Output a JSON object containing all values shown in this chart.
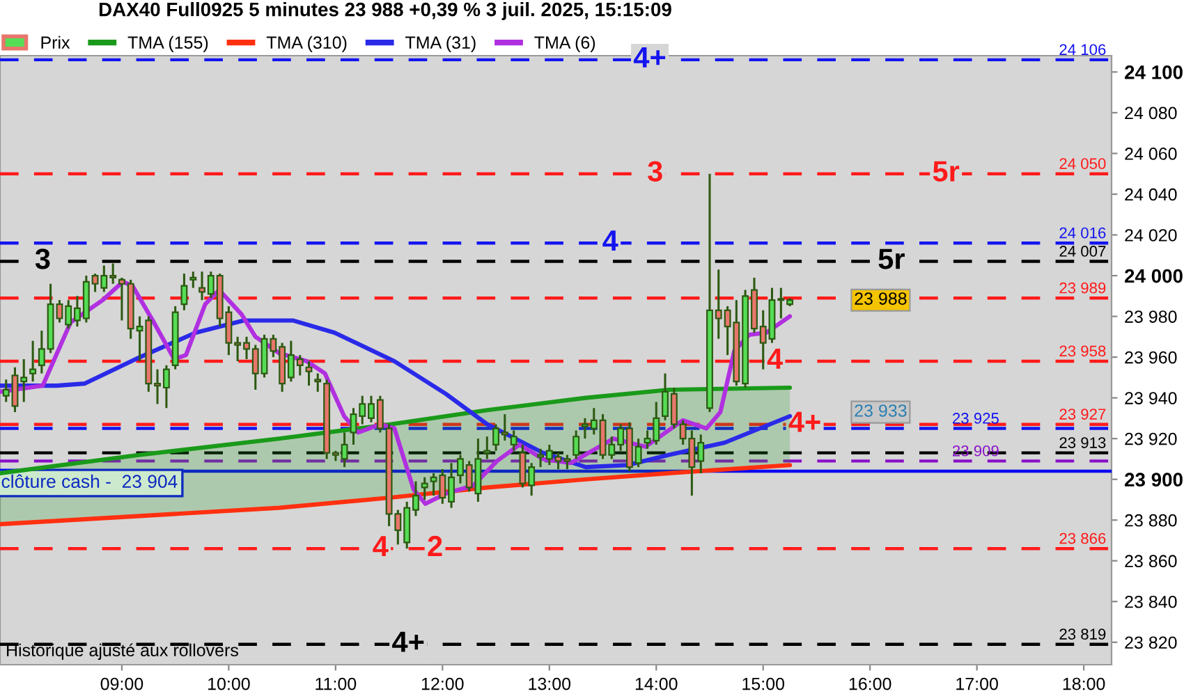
{
  "chart_data": {
    "type": "candlestick",
    "title": "DAX40 Full0925 5 minutes 23 988 +0,39 % 3 juil. 2025, 15:15:09",
    "series": [
      {
        "name": "Prix",
        "type": "candlestick",
        "colors": [
          "#55dd55",
          "#e8766c",
          "#55dd55",
          "#55dd55",
          "#55dd55",
          "#55dd55",
          "#e8766c",
          "#55dd55",
          "#55dd55",
          "#55dd55",
          "#e8766c",
          "#55dd55",
          "#e8766c",
          "#e8766c",
          "#e8766c",
          "#55dd55",
          "#e8766c",
          "#e8766c",
          "#55dd55",
          "#55dd55",
          "#55dd55",
          "#55dd55",
          "#e8766c",
          "#55dd55",
          "#e8766c",
          "#e8766c",
          "#e8766c",
          "#e8766c",
          "#e8766c",
          "#55dd55",
          "#e8766c",
          "#e8766c",
          "#55dd55",
          "#e8766c",
          "#e8766c",
          "#e8766c",
          "#e8766c",
          "#e8766c",
          "#55dd55",
          "#55dd55",
          "#55dd55",
          "#55dd55",
          "#e8766c",
          "#e8766c",
          "#e8766c",
          "#55dd55",
          "#55dd55",
          "#55dd55",
          "#55dd55",
          "#e8766c",
          "#55dd55",
          "#55dd55",
          "#e8766c",
          "#55dd55",
          "#55dd55",
          "#55dd55",
          "#e8766c",
          "#55dd55",
          "#e8766c",
          "#55dd55",
          "#55dd55",
          "#55dd55",
          "#e8766c",
          "#e8766c",
          "#55dd55",
          "#55dd55",
          "#55dd55",
          "#e8766c",
          "#55dd55",
          "#55dd55",
          "#e8766c",
          "#55dd55",
          "#55dd55",
          "#55dd55",
          "#55dd55",
          "#e8766c",
          "#e8766c",
          "#e8766c",
          "#55dd55",
          "#55dd55",
          "#e8766c",
          "#e8766c",
          "#e8766c",
          "#55dd55",
          "#e8766c",
          "#e8766c",
          "#55dd55",
          "#55dd55",
          "#55dd55"
        ],
        "x": [
          7.917,
          8,
          8.083,
          8.167,
          8.25,
          8.333,
          8.417,
          8.5,
          8.583,
          8.667,
          8.75,
          8.833,
          8.917,
          9,
          9.083,
          9.167,
          9.25,
          9.333,
          9.417,
          9.5,
          9.583,
          9.667,
          9.75,
          9.833,
          9.917,
          10,
          10.083,
          10.167,
          10.25,
          10.333,
          10.417,
          10.5,
          10.583,
          10.667,
          10.75,
          10.833,
          10.917,
          11,
          11.083,
          11.167,
          11.25,
          11.333,
          11.417,
          11.5,
          11.583,
          11.667,
          11.75,
          11.833,
          11.917,
          12,
          12.083,
          12.167,
          12.25,
          12.333,
          12.417,
          12.5,
          12.583,
          12.667,
          12.75,
          12.833,
          12.917,
          13,
          13.083,
          13.167,
          13.25,
          13.333,
          13.417,
          13.5,
          13.583,
          13.667,
          13.75,
          13.833,
          13.917,
          14,
          14.083,
          14.167,
          14.25,
          14.333,
          14.417,
          14.5,
          14.583,
          14.667,
          14.75,
          14.833,
          14.917,
          15,
          15.083,
          15.167,
          15.25
        ],
        "ohlc": [
          [
            23941,
            23949,
            23938,
            23944
          ],
          [
            23951,
            23955,
            23933,
            23936
          ],
          [
            23948,
            23959,
            23938,
            23950
          ],
          [
            23952,
            23968,
            23948,
            23954
          ],
          [
            23956,
            23973,
            23952,
            23964
          ],
          [
            23964,
            23996,
            23962,
            23986
          ],
          [
            23986,
            23988,
            23977,
            23979
          ],
          [
            23976,
            23988,
            23974,
            23985
          ],
          [
            23978,
            23990,
            23975,
            23984
          ],
          [
            23979,
            24000,
            23977,
            23997
          ],
          [
            24000,
            24001,
            23992,
            23996
          ],
          [
            23994,
            24005,
            23992,
            24000
          ],
          [
            24000,
            24006,
            23996,
            23999
          ],
          [
            23998,
            23999,
            23978,
            23996
          ],
          [
            23996,
            23998,
            23969,
            23974
          ],
          [
            23973,
            23980,
            23958,
            23975
          ],
          [
            23978,
            23980,
            23943,
            23947
          ],
          [
            23947,
            23954,
            23937,
            23946
          ],
          [
            23945,
            23956,
            23935,
            23954
          ],
          [
            23956,
            23985,
            23954,
            23982
          ],
          [
            23986,
            24001,
            23983,
            23995
          ],
          [
            23998,
            24002,
            23994,
            23999
          ],
          [
            23994,
            24002,
            23988,
            23992
          ],
          [
            23991,
            24002,
            23989,
            24000
          ],
          [
            24000,
            24001,
            23975,
            23979
          ],
          [
            23982,
            23985,
            23961,
            23967
          ],
          [
            23967,
            23970,
            23958,
            23966
          ],
          [
            23967,
            23970,
            23959,
            23964
          ],
          [
            23964,
            23966,
            23944,
            23952
          ],
          [
            23952,
            23971,
            23950,
            23969
          ],
          [
            23969,
            23971,
            23960,
            23963
          ],
          [
            23965,
            23967,
            23943,
            23947
          ],
          [
            23950,
            23968,
            23948,
            23961
          ],
          [
            23959,
            23961,
            23951,
            23956
          ],
          [
            23955,
            23958,
            23946,
            23953
          ],
          [
            23949,
            23952,
            23943,
            23948
          ],
          [
            23947,
            23949,
            23910,
            23913
          ],
          [
            23913,
            23914,
            23909,
            23912
          ],
          [
            23910,
            23923,
            23906,
            23917
          ],
          [
            23923,
            23935,
            23917,
            23932
          ],
          [
            23931,
            23941,
            23927,
            23937
          ],
          [
            23930,
            23941,
            23928,
            23937
          ],
          [
            23939,
            23941,
            23923,
            23925
          ],
          [
            23925,
            23927,
            23877,
            23883
          ],
          [
            23883,
            23885,
            23868,
            23875
          ],
          [
            23869,
            23889,
            23866,
            23886
          ],
          [
            23885,
            23899,
            23882,
            23892
          ],
          [
            23896,
            23901,
            23890,
            23898
          ],
          [
            23899,
            23903,
            23892,
            23901
          ],
          [
            23902,
            23905,
            23888,
            23891
          ],
          [
            23889,
            23908,
            23886,
            23901
          ],
          [
            23902,
            23912,
            23898,
            23910
          ],
          [
            23907,
            23909,
            23894,
            23896
          ],
          [
            23893,
            23920,
            23889,
            23910
          ],
          [
            23913,
            23921,
            23910,
            23914
          ],
          [
            23917,
            23927,
            23914,
            23925
          ],
          [
            23923,
            23932,
            23919,
            23922
          ],
          [
            23917,
            23924,
            23914,
            23921
          ],
          [
            23913,
            23917,
            23896,
            23898
          ],
          [
            23897,
            23908,
            23892,
            23906
          ],
          [
            23911,
            23915,
            23906,
            23912
          ],
          [
            23910,
            23917,
            23907,
            23914
          ],
          [
            23911,
            23913,
            23905,
            23909
          ],
          [
            23910,
            23912,
            23905,
            23909
          ],
          [
            23912,
            23924,
            23910,
            23921
          ],
          [
            23926,
            23930,
            23920,
            23927
          ],
          [
            23925,
            23935,
            23922,
            23929
          ],
          [
            23929,
            23932,
            23910,
            23912
          ],
          [
            23912,
            23921,
            23910,
            23917
          ],
          [
            23917,
            23927,
            23914,
            23925
          ],
          [
            23925,
            23928,
            23904,
            23906
          ],
          [
            23908,
            23920,
            23906,
            23916
          ],
          [
            23918,
            23924,
            23915,
            23920
          ],
          [
            23919,
            23938,
            23917,
            23930
          ],
          [
            23931,
            23952,
            23929,
            23943
          ],
          [
            23942,
            23945,
            23925,
            23927
          ],
          [
            23927,
            23929,
            23917,
            23920
          ],
          [
            23920,
            23924,
            23892,
            23906
          ],
          [
            23909,
            23922,
            23903,
            23918
          ],
          [
            23935,
            24050,
            23933,
            23983
          ],
          [
            23983,
            24003,
            23969,
            23979
          ],
          [
            23983,
            23985,
            23961,
            23975
          ],
          [
            23977,
            23988,
            23946,
            23948
          ],
          [
            23947,
            23993,
            23945,
            23990
          ],
          [
            23993,
            23999,
            23972,
            23974
          ],
          [
            23975,
            23983,
            23954,
            23967
          ],
          [
            23969,
            23994,
            23967,
            23988
          ],
          [
            23988,
            23994,
            23979,
            23988
          ],
          [
            23986,
            23989,
            23985,
            23988
          ]
        ]
      },
      {
        "name": "TMA (155)",
        "type": "line",
        "color": "#1a9a1a",
        "x": [
          7.86,
          9.17,
          10.47,
          11.51,
          12.42,
          13.34,
          14.12,
          15.25
        ],
        "values": [
          23903,
          23912,
          23920,
          23927,
          23934,
          23940,
          23944,
          23945
        ],
        "lower": [
          23878,
          23882,
          23886,
          23891,
          23896,
          23900,
          23903,
          23907
        ],
        "upper": [
          23903,
          23912,
          23920,
          23927,
          23934,
          23940,
          23944,
          23945
        ]
      },
      {
        "name": "TMA (310)",
        "type": "line",
        "color": "#ff3010",
        "x": [
          7.86,
          9.17,
          10.47,
          11.51,
          12.42,
          13.34,
          14.12,
          15.25
        ],
        "values": [
          23878,
          23882,
          23886,
          23891,
          23896,
          23900,
          23903,
          23907
        ]
      },
      {
        "name": "TMA (31)",
        "type": "line",
        "color": "#2a2ae8",
        "x": [
          7.86,
          8.39,
          8.65,
          9.17,
          9.69,
          10.14,
          10.6,
          10.99,
          11.55,
          12.03,
          12.42,
          12.94,
          13.34,
          13.73,
          14.12,
          14.64,
          15.25
        ],
        "values": [
          23946,
          23946,
          23947,
          23960,
          23972,
          23978,
          23978,
          23972,
          23958,
          23942,
          23927,
          23913,
          23906,
          23907,
          23912,
          23918,
          23931
        ]
      },
      {
        "name": "TMA (6)",
        "type": "line",
        "color": "#b030e0",
        "x": [
          7.86,
          8.26,
          8.52,
          8.82,
          9.01,
          9.1,
          9.3,
          9.49,
          9.6,
          9.78,
          9.91,
          10.12,
          10.25,
          10.47,
          10.73,
          10.9,
          11.08,
          11.21,
          11.42,
          11.55,
          11.73,
          11.84,
          12.03,
          12.29,
          12.51,
          12.72,
          12.94,
          13.2,
          13.6,
          13.9,
          14.25,
          14.47,
          14.6,
          14.73,
          14.87,
          15.03,
          15.25
        ],
        "values": [
          23943,
          23946,
          23977,
          23988,
          23997,
          23995,
          23977,
          23959,
          23961,
          23986,
          23993,
          23981,
          23970,
          23962,
          23958,
          23952,
          23931,
          23923,
          23927,
          23925,
          23895,
          23888,
          23893,
          23897,
          23909,
          23917,
          23910,
          23908,
          23920,
          23916,
          23929,
          23925,
          23933,
          23963,
          23971,
          23972,
          23980
        ]
      }
    ],
    "xlim": [
      7.86,
      18.26
    ],
    "xticks": [
      {
        "value": 9,
        "label": "09:00"
      },
      {
        "value": 10,
        "label": "10:00"
      },
      {
        "value": 11,
        "label": "11:00"
      },
      {
        "value": 12,
        "label": "12:00"
      },
      {
        "value": 13,
        "label": "13:00"
      },
      {
        "value": 14,
        "label": "14:00"
      },
      {
        "value": 15,
        "label": "15:00"
      },
      {
        "value": 16,
        "label": "16:00"
      },
      {
        "value": 17,
        "label": "17:00"
      },
      {
        "value": 18,
        "label": "18:00"
      }
    ],
    "ylim": [
      23809,
      24108
    ],
    "yticks": [
      {
        "value": 23820,
        "label": "23 820"
      },
      {
        "value": 23840,
        "label": "23 840"
      },
      {
        "value": 23860,
        "label": "23 860"
      },
      {
        "value": 23880,
        "label": "23 880"
      },
      {
        "value": 23900,
        "label": "23 900"
      },
      {
        "value": 23920,
        "label": "23 920"
      },
      {
        "value": 23940,
        "label": "23 940"
      },
      {
        "value": 23960,
        "label": "23 960"
      },
      {
        "value": 23980,
        "label": "23 980"
      },
      {
        "value": 24000,
        "label": "24 000"
      },
      {
        "value": 24020,
        "label": "24 020"
      },
      {
        "value": 24040,
        "label": "24 040"
      },
      {
        "value": 24060,
        "label": "24 060"
      },
      {
        "value": 24080,
        "label": "24 080"
      },
      {
        "value": 24100,
        "label": "24 100"
      }
    ],
    "ref_lines": [
      {
        "axis": "y",
        "value": 24106,
        "label": "24 106",
        "color": "#1414f0",
        "line_style": "dashed"
      },
      {
        "axis": "y",
        "value": 24050,
        "label": "24 050",
        "color": "#ff1a1a",
        "line_style": "dashed"
      },
      {
        "axis": "y",
        "value": 24016,
        "label": "24 016",
        "color": "#1414f0",
        "line_style": "dashed"
      },
      {
        "axis": "y",
        "value": 24007,
        "label": "24 007",
        "color": "#000000",
        "line_style": "dashed"
      },
      {
        "axis": "y",
        "value": 23989,
        "label": "23 989",
        "color": "#ff1a1a",
        "line_style": "dashed"
      },
      {
        "axis": "y",
        "value": 23958,
        "label": "23 958",
        "color": "#ff1a1a",
        "line_style": "dashed"
      },
      {
        "axis": "y",
        "value": 23927,
        "label": "23 927",
        "color": "#ff1a1a",
        "line_style": "dashed"
      },
      {
        "axis": "y",
        "value": 23925,
        "label": "23 925",
        "color": "#1414f0",
        "line_style": "dashed"
      },
      {
        "axis": "y",
        "value": 23913,
        "label": "23 913",
        "color": "#000000",
        "line_style": "dashed"
      },
      {
        "axis": "y",
        "value": 23909,
        "label": "23 909",
        "color": "#8a10c8",
        "line_style": "dashed"
      },
      {
        "axis": "y",
        "value": 23904,
        "label": "clôture cash -  23 904",
        "color": "#0a0af0",
        "line_style": "solid"
      },
      {
        "axis": "y",
        "value": 23866,
        "label": "23 866",
        "color": "#ff1a1a",
        "line_style": "dashed"
      },
      {
        "axis": "y",
        "value": 23819,
        "label": "23 819",
        "color": "#000000",
        "line_style": "dashed"
      }
    ],
    "annotations": [
      {
        "text": "4+",
        "x": 13.94,
        "y": 24106
      },
      {
        "text": "3",
        "x": 13.99,
        "y": 24050
      },
      {
        "text": "5r",
        "x": 16.71,
        "y": 24050
      },
      {
        "text": "4",
        "x": 13.57,
        "y": 24016
      },
      {
        "text": "3",
        "x": 8.26,
        "y": 24007
      },
      {
        "text": "5r",
        "x": 16.2,
        "y": 24007
      },
      {
        "text": "4",
        "x": 15.11,
        "y": 23958
      },
      {
        "text": "4+",
        "x": 15.39,
        "y": 23927
      },
      {
        "text": "4",
        "x": 11.42,
        "y": 23866
      },
      {
        "text": "2",
        "x": 11.93,
        "y": 23866
      },
      {
        "text": "4+",
        "x": 11.68,
        "y": 23819
      },
      {
        "text": "23 988",
        "y": 23988
      },
      {
        "text": "23 933",
        "y": 23933
      },
      "Historique ajusté aux rollovers"
    ],
    "legend": "top left"
  }
}
